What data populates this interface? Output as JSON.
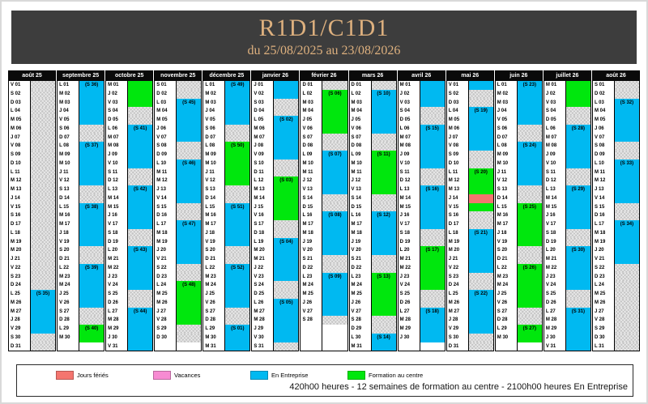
{
  "header": {
    "title": "R1D1/C1D1",
    "subtitle": "du 25/08/2025 au 23/08/2026"
  },
  "colors": {
    "title_bg": "#3d3d3d",
    "title_text": "#ddb07e",
    "month_header_bg": "#0a0a0a",
    "jours_feries": "#f4756f",
    "vacances": "#f78bd2",
    "en_entreprise": "#00b9f1",
    "formation_au_centre": "#00e70d",
    "hors_periode": "#c4c4c4"
  },
  "legend": {
    "items": [
      {
        "label": "Jours fériés",
        "color_key": "jours_feries"
      },
      {
        "label": "Vacances",
        "color_key": "vacances"
      },
      {
        "label": "En Entreprise",
        "color_key": "en_entreprise"
      },
      {
        "label": "Formation au centre",
        "color_key": "formation_au_centre"
      }
    ]
  },
  "footer": {
    "summary": "420h00 heures - 12 semaines de formation au centre - 2100h00 heures En Entreprise"
  },
  "calendar": {
    "color_codes": {
      "o": "hors période / week-end",
      "b": "en entreprise",
      "g": "formation au centre",
      "f": "jour férié",
      "e": "vide"
    },
    "months": [
      {
        "name": "août 25",
        "dows": "VSDLMMJVSDLMMJVSDLMMJVSDLMMJVSD",
        "colors": "oooooooooooooooooooooooobbbbboo",
        "weeks": {
          "25": "(S 35)"
        }
      },
      {
        "name": "septembre 25",
        "dows": "LMMJVSDLMMJVSDLMMJVSDLMMJVSDLM",
        "colors": "bbbbboobbbbboobbbbboobbbbboogge",
        "weeks": {
          "1": "(S 36)",
          "8": "(S 37)",
          "15": "(S 38)",
          "22": "(S 39)",
          "29": "(S 40)"
        }
      },
      {
        "name": "octobre 25",
        "dows": "MJVSDLMMJVSDLMMJVSDLMMJVSDLMMJV",
        "colors": "gggoobbbbboobbbbboobbbbboobbbbb",
        "weeks": {
          "6": "(S 41)",
          "13": "(S 42)",
          "20": "(S 43)",
          "27": "(S 44)"
        }
      },
      {
        "name": "novembre 25",
        "dows": "SDLMMJVSDLMMJVSDLMMJVSDLMMJVSD",
        "colors": "oobbbbboobbbbboobbbbboogggggooe",
        "weeks": {
          "3": "(S 45)",
          "10": "(S 46)",
          "17": "(S 47)",
          "24": "(S 48)"
        }
      },
      {
        "name": "décembre 25",
        "dows": "LMMJVSDLMMJVSDLMMJVSDLMMJVSDLMM",
        "colors": "bbbbboogggggoobbbbboobbbbboobbb",
        "weeks": {
          "1": "(S 49)",
          "8": "(S 50)",
          "15": "(S 51)",
          "22": "(S 52)",
          "29": "(S 01)"
        }
      },
      {
        "name": "janvier 26",
        "dows": "JVSDLMMJVSDLMMJVSDLMMJVSDLMMJVS",
        "colors": "bboobbbbboogggggoobbbbboobbbbbo",
        "weeks": {
          "5": "(S 02)",
          "12": "(S 03)",
          "19": "(S 04)",
          "26": "(S 05)"
        }
      },
      {
        "name": "février 26",
        "dows": "DLMMJVSDLMMJVSDLMMJVSDLMMJVS",
        "colors": "ogggggoobbbbboobbbbboobbbbboeee",
        "weeks": {
          "2": "(S 06)",
          "9": "(S 07)",
          "16": "(S 08)",
          "23": "(S 09)"
        }
      },
      {
        "name": "mars 26",
        "dows": "DLMMJVSDLMMJVSDLMMJVSDLMMJVSDLM",
        "colors": "obbbbboogggggoobbbbboogggggoobb",
        "weeks": {
          "2": "(S 10)",
          "9": "(S 11)",
          "16": "(S 12)",
          "23": "(S 13)",
          "30": "(S 14)"
        }
      },
      {
        "name": "avril 26",
        "dows": "MJVSDLMMJVSDLMMJVSDLMMJVSDLMMJ",
        "colors": "bbboobbbbboobbbbboogggggoobbbbe",
        "weeks": {
          "6": "(S 15)",
          "13": "(S 16)",
          "20": "(S 17)",
          "27": "(S 18)"
        }
      },
      {
        "name": "mai 26",
        "dows": "VSDLMMJVSDLMMJVSDLMMJVSDLMMJVSD",
        "colors": "boobbbbboogggfgoobbbbboobbbbboo",
        "weeks": {
          "4": "(S 19)",
          "11": "(S 20)",
          "18": "(S 21)",
          "25": "(S 22)"
        }
      },
      {
        "name": "juin 26",
        "dows": "LMMJVSDLMMJVSDLMMJVSDLMMJVSDLM",
        "colors": "bbbbboobbbbboogggggoogggggoogge",
        "weeks": {
          "1": "(S 23)",
          "8": "(S 24)",
          "15": "(S 25)",
          "22": "(S 26)",
          "29": "(S 27)"
        }
      },
      {
        "name": "juillet 26",
        "dows": "MJVSDLMMJVSDLMMJVSDLMMJVSDLMMJV",
        "colors": "gggoobbbbboobbbbboobbbbboobbbbb",
        "weeks": {
          "6": "(S 28)",
          "13": "(S 29)",
          "20": "(S 30)",
          "27": "(S 31)"
        }
      },
      {
        "name": "août 26",
        "dows": "SDLMMJVSDLMMJVSDLMMJVSDLMMJVSDL",
        "colors": "oobbbbboobbbbboobbbbboooooooooo",
        "weeks": {
          "3": "(S 32)",
          "10": "(S 33)",
          "17": "(S 34)"
        }
      }
    ]
  }
}
